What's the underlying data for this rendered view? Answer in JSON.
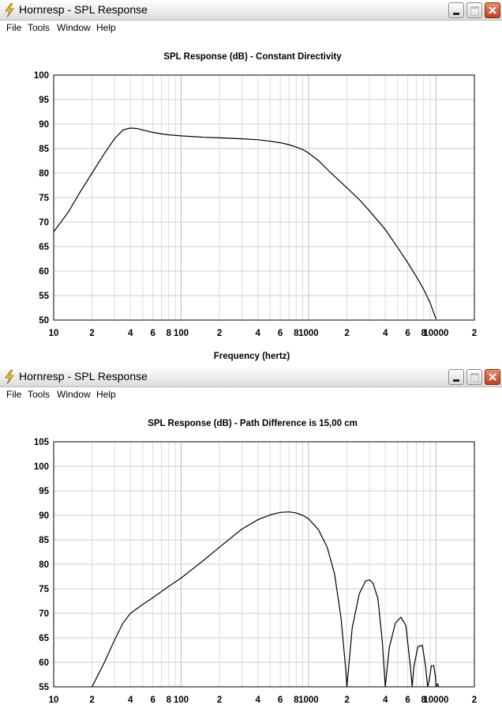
{
  "windows": [
    {
      "title": "Hornresp - SPL Response",
      "menu": [
        "File",
        "Tools",
        "Window",
        "Help"
      ],
      "chart_data": {
        "type": "line",
        "title": "SPL Response (dB) - Constant Directivity",
        "xlabel": "Frequency (hertz)",
        "ylabel": "",
        "xscale": "log",
        "xlim": [
          10,
          20000
        ],
        "ylim": [
          50,
          100
        ],
        "yticks": [
          50,
          55,
          60,
          65,
          70,
          75,
          80,
          85,
          90,
          95,
          100
        ],
        "xtick_labels": [
          "10",
          "2",
          "4",
          "6",
          "8",
          "100",
          "2",
          "4",
          "6",
          "8",
          "1000",
          "2",
          "4",
          "6",
          "8",
          "10000",
          "2"
        ],
        "grid": true,
        "series": [
          {
            "color": "#000000",
            "x": [
              10,
              13,
              16,
              20,
              25,
              30,
              35,
              40,
              45,
              50,
              60,
              70,
              80,
              100,
              150,
              200,
              300,
              400,
              500,
              600,
              700,
              800,
              900,
              1000,
              1200,
              1500,
              2000,
              2500,
              3000,
              4000,
              5000,
              6000,
              7000,
              8000,
              9000,
              10000
            ],
            "y": [
              68,
              72,
              76,
              80,
              84,
              87,
              88.8,
              89.2,
              89.1,
              88.8,
              88.3,
              88,
              87.8,
              87.6,
              87.3,
              87.2,
              87,
              86.8,
              86.5,
              86.2,
              85.8,
              85.3,
              84.8,
              84.1,
              82.5,
              80,
              77,
              74.6,
              72.3,
              68.5,
              64.8,
              61.7,
              58.9,
              56.3,
              53.5,
              50.2
            ]
          }
        ]
      }
    },
    {
      "title": "Hornresp - SPL Response",
      "menu": [
        "File",
        "Tools",
        "Window",
        "Help"
      ],
      "chart_data": {
        "type": "line",
        "title": "SPL Response (dB) - Path Difference is 15,00 cm",
        "xlabel": "",
        "ylabel": "",
        "xscale": "log",
        "xlim": [
          10,
          20000
        ],
        "ylim": [
          55,
          105
        ],
        "yticks": [
          55,
          60,
          65,
          70,
          75,
          80,
          85,
          90,
          95,
          100,
          105
        ],
        "xtick_labels": [
          "10",
          "2",
          "4",
          "6",
          "8",
          "100",
          "2",
          "4",
          "6",
          "8",
          "1000",
          "2",
          "4",
          "6",
          "8",
          "10000",
          "2"
        ],
        "grid": true,
        "series": [
          {
            "color": "#000000",
            "x": [
              20,
              25,
              30,
              35,
              40,
              50,
              60,
              80,
              100,
              150,
              200,
              300,
              400,
              500,
              600,
              700,
              800,
              900,
              1000,
              1200,
              1400,
              1600,
              1800,
              1950,
              2000,
              2200,
              2500,
              2800,
              3000,
              3200,
              3500,
              3800,
              3950,
              4000,
              4300,
              4800,
              5300,
              5800,
              6300,
              6500,
              6700,
              7200,
              7800,
              8300,
              8600,
              8800,
              9200,
              9600,
              9900,
              10000,
              10300,
              10500
            ],
            "y": [
              55,
              60,
              64.5,
              68,
              70,
              71.8,
              73.2,
              75.5,
              77.2,
              80.8,
              83.5,
              87.2,
              89.1,
              90.1,
              90.6,
              90.7,
              90.5,
              90,
              89.3,
              87,
              83.5,
              78,
              69,
              59,
              55,
              67,
              74,
              76.6,
              76.8,
              76.2,
              73,
              64,
              57,
              55,
              63,
              68,
              69.2,
              67.5,
              59,
              55,
              59,
              63.2,
              63.5,
              59,
              55,
              56,
              59.3,
              59.3,
              57,
              55,
              55.6,
              55
            ]
          }
        ]
      }
    }
  ]
}
